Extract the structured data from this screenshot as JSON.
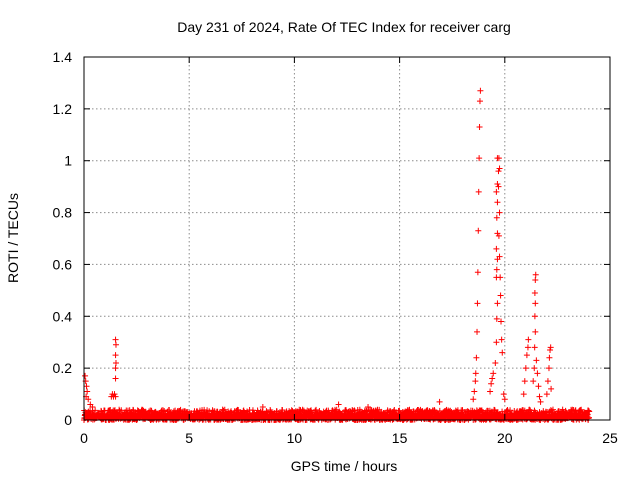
{
  "chart_data": {
    "type": "scatter",
    "title": "Day 231 of 2024, Rate Of TEC Index for receiver carg",
    "xlabel": "GPS time / hours",
    "ylabel": "ROTI / TECUs",
    "xlim": [
      0,
      25
    ],
    "ylim": [
      0,
      1.4
    ],
    "x_ticks": [
      "0",
      "5",
      "10",
      "15",
      "20",
      "25"
    ],
    "y_ticks": [
      "0",
      "0.2",
      "0.4",
      "0.6",
      "0.8",
      "1",
      "1.2",
      "1.4"
    ],
    "grid": true,
    "marker": "+",
    "color": "#ff0000",
    "baseline": {
      "x_range": [
        0,
        24
      ],
      "y_range": [
        0.0,
        0.04
      ]
    },
    "series": [
      {
        "values": [
          [
            0.05,
            0.17
          ],
          [
            0.08,
            0.15
          ],
          [
            0.12,
            0.13
          ],
          [
            0.15,
            0.11
          ],
          [
            0.1,
            0.09
          ],
          [
            0.2,
            0.08
          ],
          [
            0.3,
            0.06
          ],
          [
            0.4,
            0.05
          ],
          [
            1.3,
            0.09
          ],
          [
            1.35,
            0.1
          ],
          [
            1.4,
            0.09
          ],
          [
            1.45,
            0.1
          ],
          [
            1.5,
            0.09
          ],
          [
            1.5,
            0.16
          ],
          [
            1.5,
            0.2
          ],
          [
            1.52,
            0.22
          ],
          [
            1.5,
            0.25
          ],
          [
            1.52,
            0.29
          ],
          [
            1.5,
            0.31
          ],
          [
            8.5,
            0.05
          ],
          [
            12.1,
            0.06
          ],
          [
            13.5,
            0.05
          ],
          [
            16.9,
            0.07
          ],
          [
            18.5,
            0.08
          ],
          [
            18.55,
            0.11
          ],
          [
            18.6,
            0.15
          ],
          [
            18.62,
            0.18
          ],
          [
            18.65,
            0.24
          ],
          [
            18.68,
            0.34
          ],
          [
            18.7,
            0.45
          ],
          [
            18.72,
            0.57
          ],
          [
            18.74,
            0.73
          ],
          [
            18.76,
            0.88
          ],
          [
            18.78,
            1.01
          ],
          [
            18.8,
            1.13
          ],
          [
            18.82,
            1.23
          ],
          [
            18.84,
            1.27
          ],
          [
            19.3,
            0.11
          ],
          [
            19.35,
            0.14
          ],
          [
            19.4,
            0.16
          ],
          [
            19.45,
            0.18
          ],
          [
            19.55,
            0.22
          ],
          [
            19.6,
            0.3
          ],
          [
            19.62,
            0.39
          ],
          [
            19.65,
            0.45
          ],
          [
            19.6,
            0.55
          ],
          [
            19.62,
            0.58
          ],
          [
            19.65,
            0.62
          ],
          [
            19.6,
            0.66
          ],
          [
            19.65,
            0.72
          ],
          [
            19.62,
            0.78
          ],
          [
            19.65,
            0.84
          ],
          [
            19.6,
            0.88
          ],
          [
            19.65,
            0.91
          ],
          [
            19.7,
            0.96
          ],
          [
            19.65,
            1.01
          ],
          [
            19.72,
            1.01
          ],
          [
            19.75,
            0.97
          ],
          [
            19.7,
            0.9
          ],
          [
            19.75,
            0.8
          ],
          [
            19.72,
            0.71
          ],
          [
            19.75,
            0.63
          ],
          [
            19.78,
            0.55
          ],
          [
            19.8,
            0.48
          ],
          [
            19.82,
            0.38
          ],
          [
            19.85,
            0.31
          ],
          [
            19.88,
            0.26
          ],
          [
            19.95,
            0.1
          ],
          [
            20.0,
            0.08
          ],
          [
            20.9,
            0.1
          ],
          [
            20.95,
            0.15
          ],
          [
            21.0,
            0.2
          ],
          [
            21.05,
            0.25
          ],
          [
            21.1,
            0.28
          ],
          [
            21.12,
            0.31
          ],
          [
            21.35,
            0.15
          ],
          [
            21.4,
            0.2
          ],
          [
            21.42,
            0.28
          ],
          [
            21.45,
            0.34
          ],
          [
            21.43,
            0.4
          ],
          [
            21.45,
            0.45
          ],
          [
            21.43,
            0.49
          ],
          [
            21.45,
            0.54
          ],
          [
            21.47,
            0.56
          ],
          [
            21.5,
            0.23
          ],
          [
            21.55,
            0.18
          ],
          [
            21.6,
            0.13
          ],
          [
            21.65,
            0.09
          ],
          [
            21.7,
            0.07
          ],
          [
            22.0,
            0.1
          ],
          [
            22.05,
            0.15
          ],
          [
            22.1,
            0.2
          ],
          [
            22.12,
            0.24
          ],
          [
            22.15,
            0.27
          ],
          [
            22.18,
            0.28
          ],
          [
            22.2,
            0.12
          ]
        ]
      }
    ]
  }
}
